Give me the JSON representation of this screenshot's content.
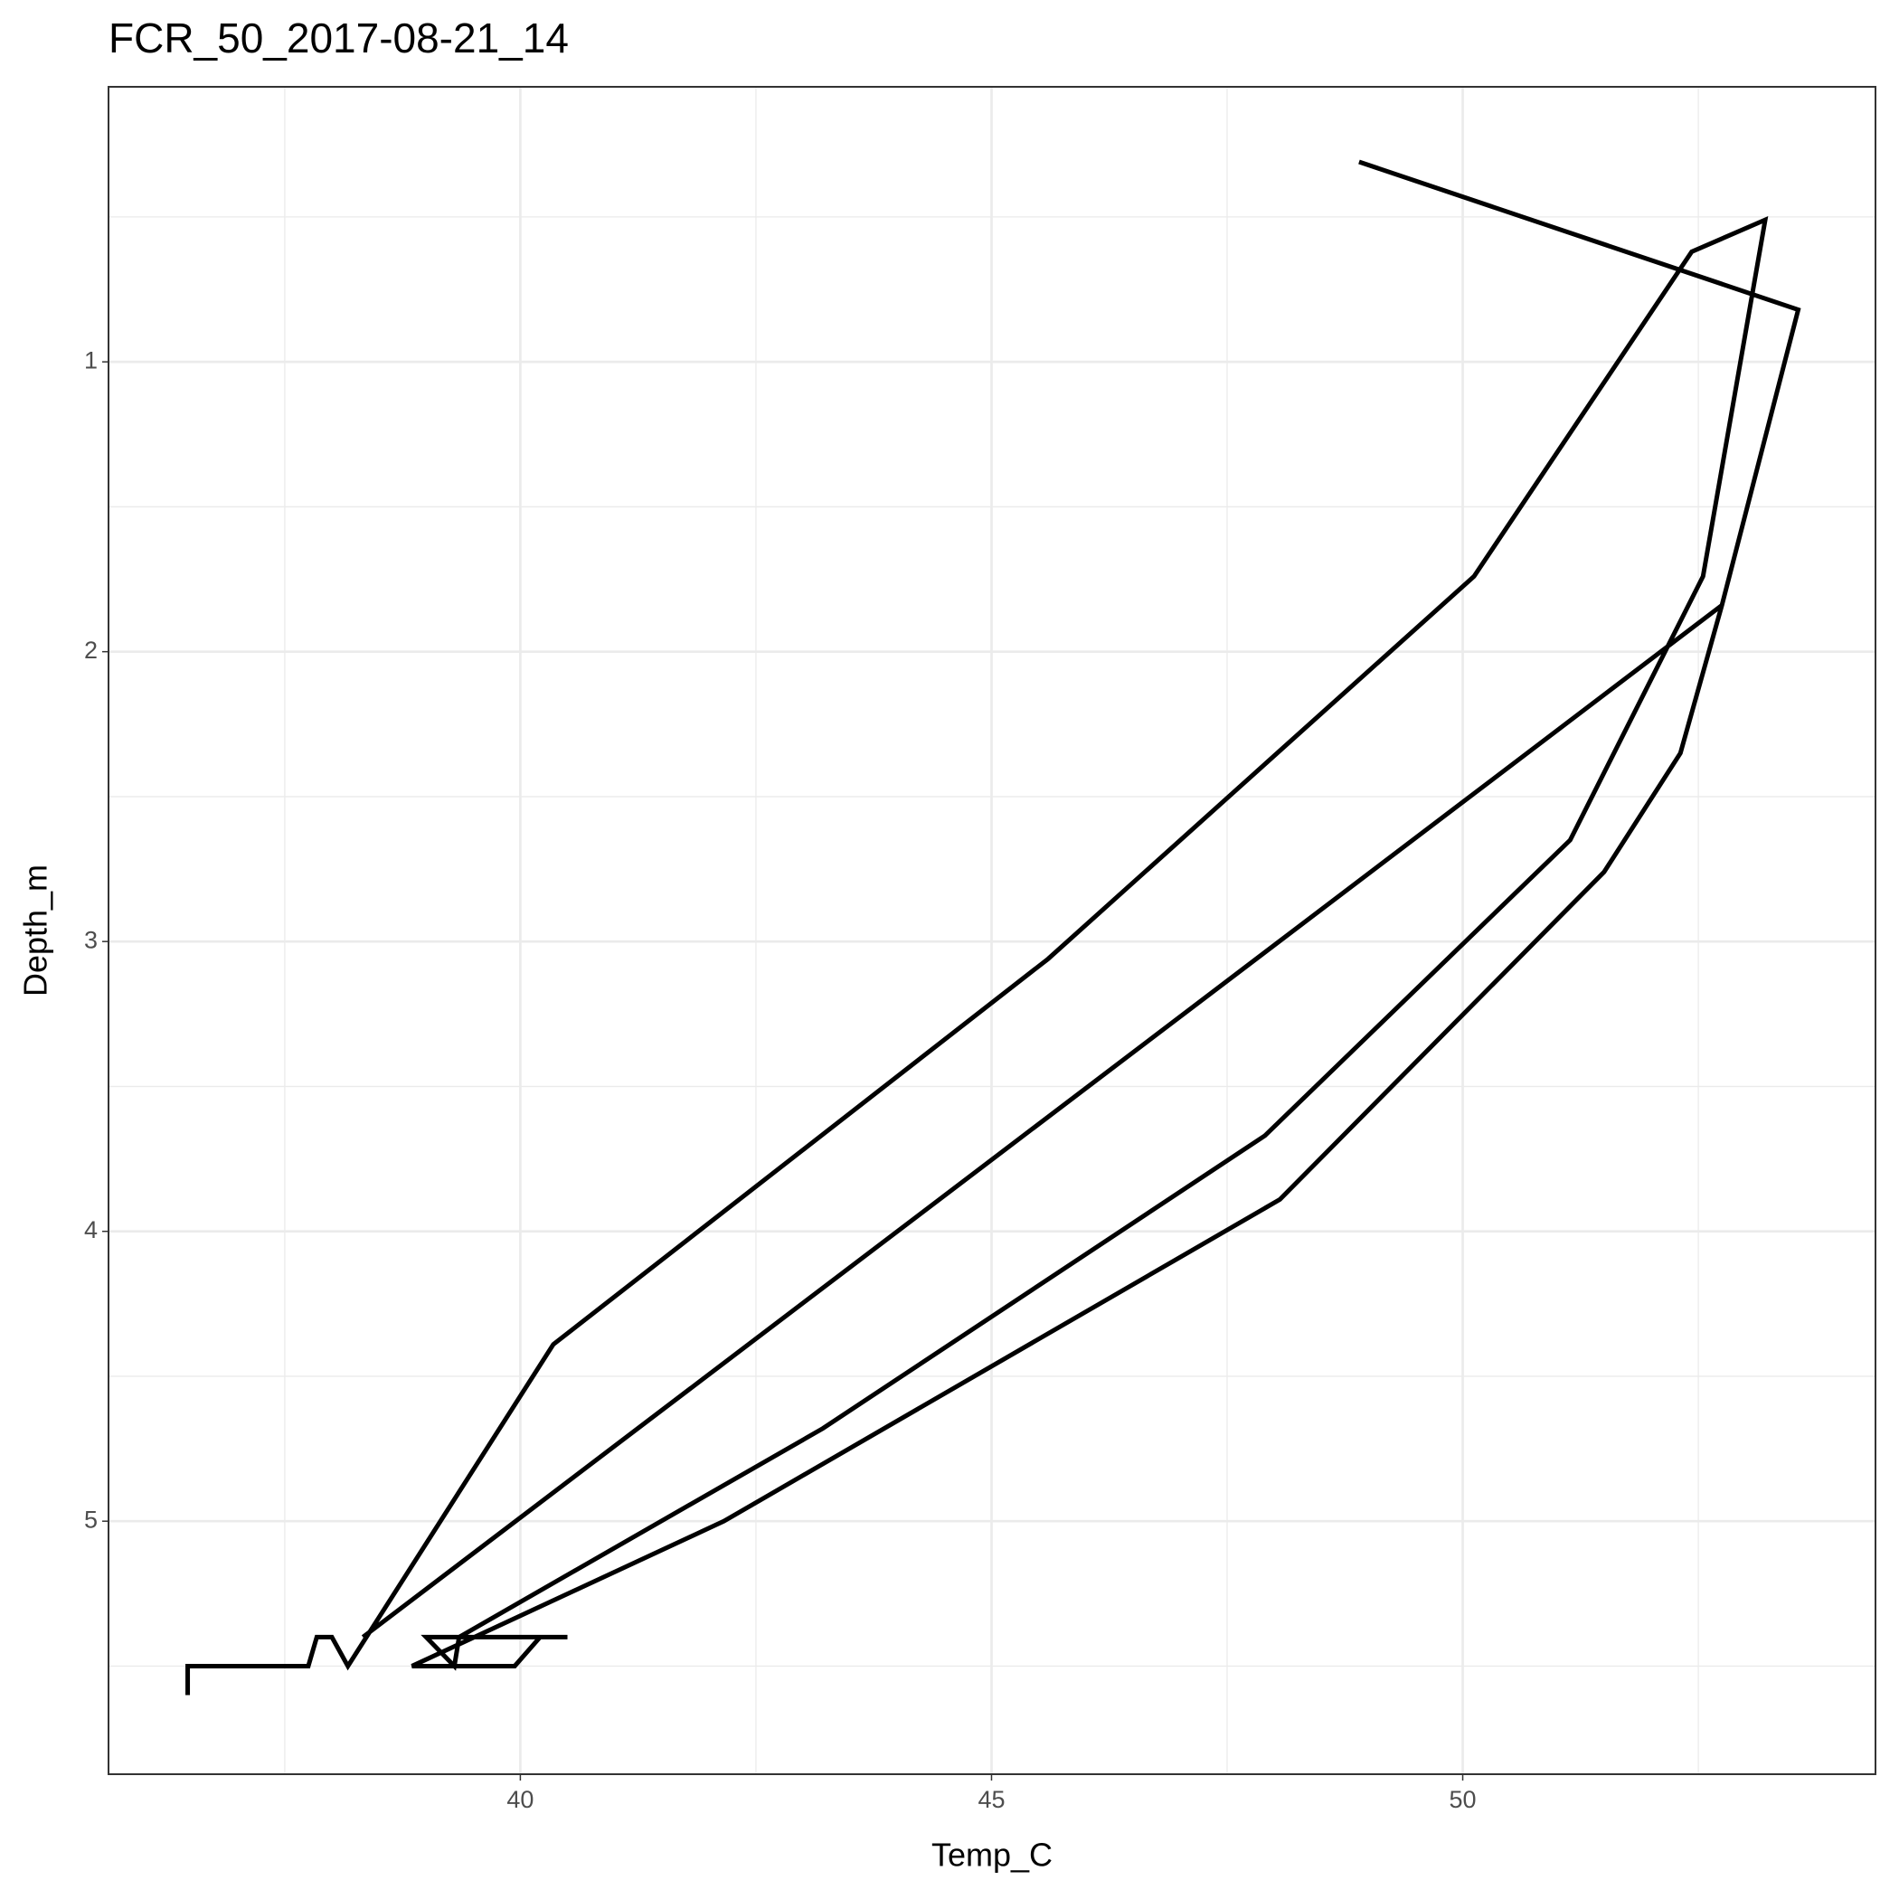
{
  "chart_data": {
    "type": "line",
    "title": "FCR_50_2017-08-21_14",
    "x_label": "Temp_C",
    "y_label": "Depth_m",
    "xlim": [
      35.63,
      54.38
    ],
    "ylim": [
      5.873,
      0.051
    ],
    "y_reversed": true,
    "xticks": [
      40,
      45,
      50
    ],
    "yticks": [
      1,
      2,
      3,
      4,
      5
    ],
    "x_minor_breaks": [
      37.5,
      42.5,
      47.5,
      52.5
    ],
    "y_minor_breaks": [
      0.5,
      1.5,
      2.5,
      3.5,
      4.5,
      5.5
    ],
    "grid": true,
    "color": "#000000",
    "x": [
      48.9,
      53.56,
      52.75,
      52.31,
      51.5,
      48.06,
      42.16,
      38.85,
      39.94,
      40.21,
      40.5,
      39.0,
      39.3,
      39.35,
      43.21,
      47.9,
      51.14,
      52.55,
      53.21,
      52.43,
      50.12,
      45.6,
      40.35,
      38.17,
      38.0,
      37.84,
      37.75,
      36.47,
      36.47,
      null,
      38.33,
      52.75
    ],
    "values": [
      0.31,
      0.82,
      1.84,
      2.35,
      2.76,
      3.89,
      5.0,
      5.5,
      5.5,
      5.4,
      5.4,
      5.4,
      5.5,
      5.4,
      4.68,
      3.67,
      2.65,
      1.74,
      0.51,
      0.62,
      1.74,
      3.06,
      4.39,
      5.5,
      5.4,
      5.4,
      5.5,
      5.5,
      5.6,
      null,
      5.4,
      1.84
    ]
  }
}
